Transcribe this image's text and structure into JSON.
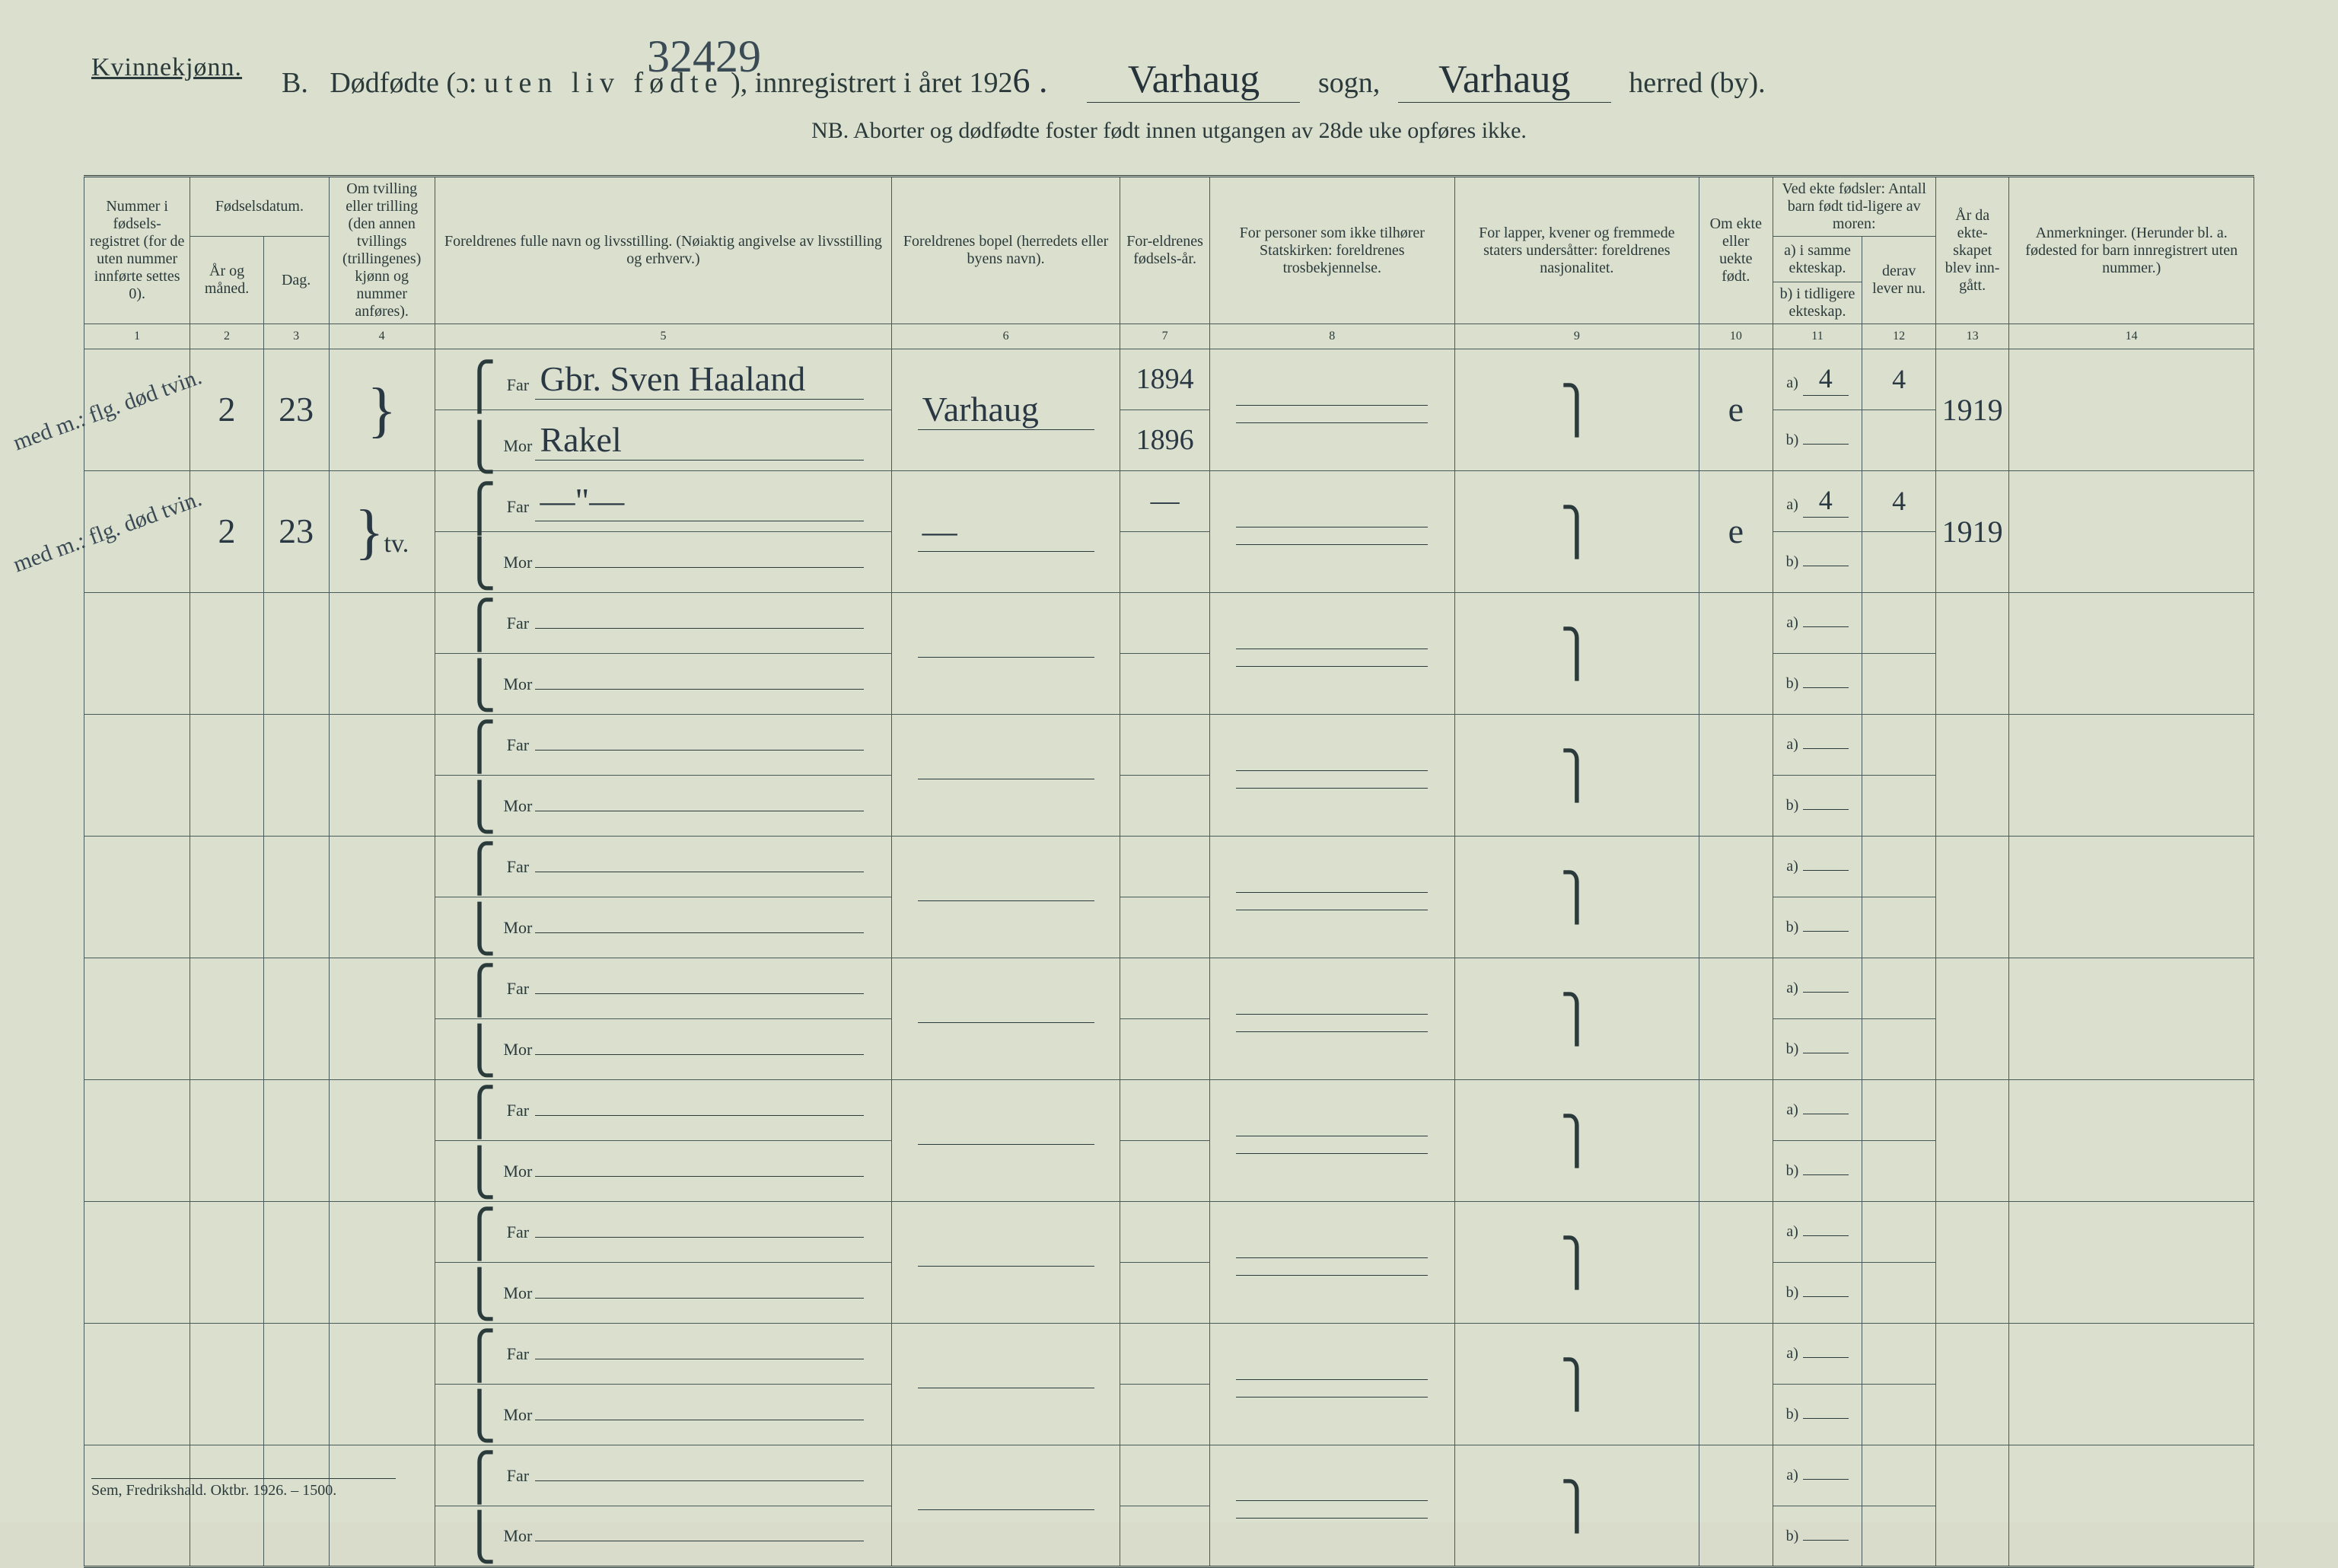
{
  "header": {
    "gender": "Kvinnekjønn.",
    "prefix": "B.",
    "title_a": "Dødfødte (ɔ:",
    "title_b_spaced": "uten liv fødte",
    "title_c": "), innregistrert i året 192",
    "year_suffix_hand": "6 .",
    "sogn_label": "sogn,",
    "herred_label": "herred (by).",
    "sogn_value": "Varhaug",
    "herred_value": "Varhaug",
    "top_number": "32429",
    "nb": "NB.  Aborter og dødfødte foster født innen utgangen av 28de uke opføres ikke."
  },
  "columns": {
    "c1": "Nummer i fødsels-registret (for de uten nummer innførte settes 0).",
    "c2_group": "Fødselsdatum.",
    "c2": "År og måned.",
    "c3": "Dag.",
    "c4": "Om tvilling eller trilling (den annen tvillings (trillingenes) kjønn og nummer anføres).",
    "c5": "Foreldrenes fulle navn og livsstilling. (Nøiaktig angivelse av livsstilling og erhverv.)",
    "c6": "Foreldrenes bopel (herredets eller byens navn).",
    "c7": "For-eldrenes fødsels-år.",
    "c8": "For personer som ikke tilhører Statskirken: foreldrenes trosbekjennelse.",
    "c9": "For lapper, kvener og fremmede staters undersåtter: foreldrenes nasjonalitet.",
    "c10": "Om ekte eller uekte født.",
    "c11_group": "Ved ekte fødsler: Antall barn født tid-ligere av moren:",
    "c11": "a) i samme ekteskap.",
    "c11b": "b) i tidligere ekteskap.",
    "c12": "derav lever nu.",
    "c13": "År da ekte-skapet blev inn-gått.",
    "c14": "Anmerkninger. (Herunder bl. a. fødested for barn innregistrert uten nummer.)",
    "nums": [
      "1",
      "2",
      "3",
      "4",
      "5",
      "6",
      "7",
      "8",
      "9",
      "10",
      "11",
      "12",
      "13",
      "14"
    ]
  },
  "labels": {
    "far": "Far",
    "mor": "Mor",
    "a": "a)",
    "b": "b)"
  },
  "rows": [
    {
      "margin_note": "med m.: flg. død tvin.",
      "col1": "",
      "col2": "2",
      "col3": "23",
      "col4_brace": true,
      "far_name": "Gbr. Sven Haaland",
      "mor_name": "Rakel",
      "bopel": "Varhaug",
      "far_year": "1894",
      "mor_year": "1896",
      "ekte": "e",
      "a_val": "4",
      "a_lever": "4",
      "aar": "1919"
    },
    {
      "margin_note": "med m.: flg. død tvin.",
      "col1": "",
      "col2": "2",
      "col3": "23",
      "col4_brace": true,
      "col4_txt": "tv.",
      "far_name": "—\"—",
      "mor_name": "",
      "bopel": "—",
      "far_year": "—",
      "mor_year": "",
      "ekte": "e",
      "a_val": "4",
      "a_lever": "4",
      "aar": "1919"
    },
    {},
    {},
    {},
    {},
    {},
    {},
    {},
    {}
  ],
  "footer": "Sem, Fredrikshald.  Oktbr. 1926. – 1500."
}
